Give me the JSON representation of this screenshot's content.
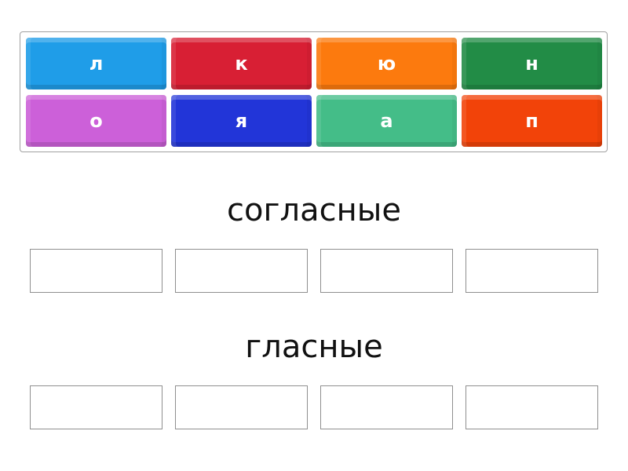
{
  "tiles": [
    {
      "label": "л",
      "color": "#1f9de8"
    },
    {
      "label": "к",
      "color": "#d81f34"
    },
    {
      "label": "ю",
      "color": "#fc7a0e"
    },
    {
      "label": "н",
      "color": "#228c46"
    },
    {
      "label": "о",
      "color": "#cc60d9"
    },
    {
      "label": "я",
      "color": "#2235d8"
    },
    {
      "label": "а",
      "color": "#44bd88"
    },
    {
      "label": "п",
      "color": "#f24309"
    }
  ],
  "groups": [
    {
      "title": "согласные"
    },
    {
      "title": "гласные"
    }
  ]
}
